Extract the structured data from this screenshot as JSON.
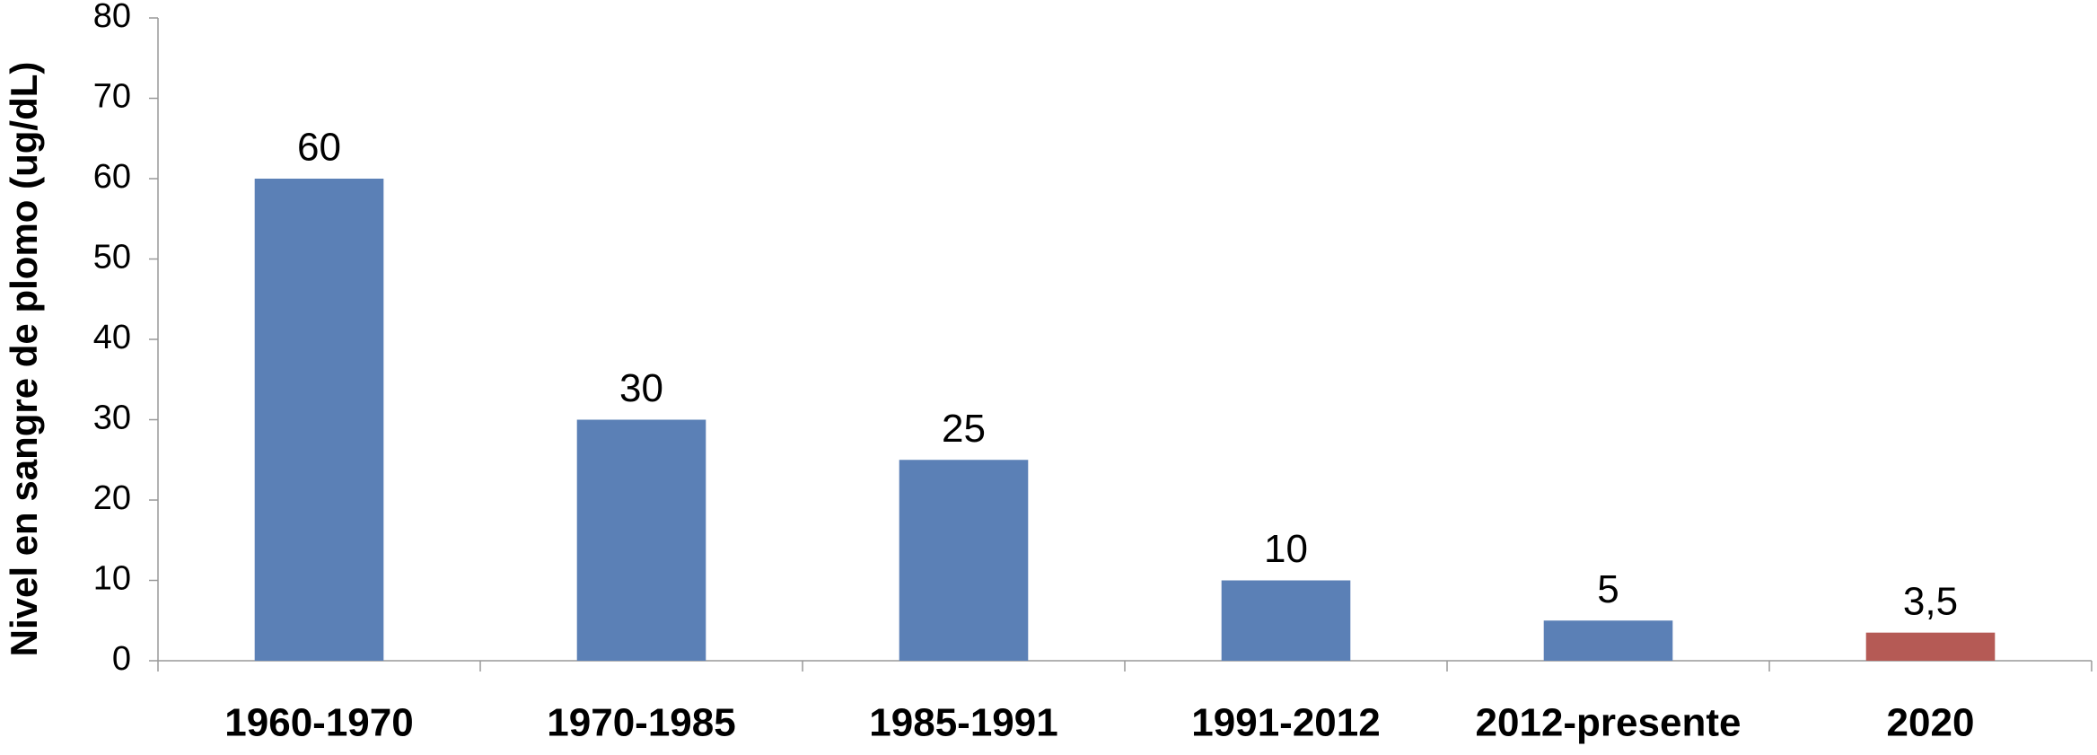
{
  "chart_data": {
    "type": "bar",
    "y_label": "Nivel en sangre de plomo (ug/dL)",
    "categories": [
      "1960-1970",
      "1970-1985",
      "1985-1991",
      "1991-2012",
      "2012-presente",
      "2020"
    ],
    "values": [
      60,
      30,
      25,
      10,
      5,
      3.5
    ],
    "value_labels": [
      "60",
      "30",
      "25",
      "10",
      "5",
      "3,5"
    ],
    "colors": [
      "#5b80b6",
      "#5b80b6",
      "#5b80b6",
      "#5b80b6",
      "#5b80b6",
      "#b55a55"
    ],
    "ylim": [
      0,
      80
    ],
    "yticks": [
      0,
      10,
      20,
      30,
      40,
      50,
      60,
      70,
      80
    ],
    "grid": false
  }
}
